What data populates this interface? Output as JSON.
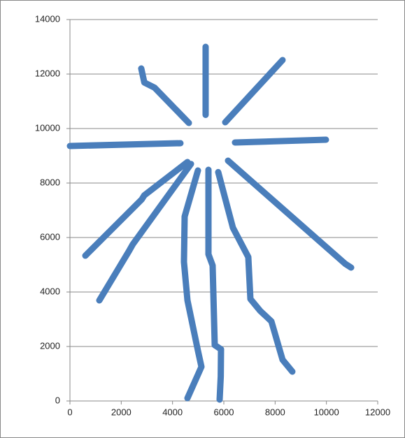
{
  "chart_data": {
    "type": "line",
    "color": "#4a7ebb",
    "grid": true,
    "xlim": [
      0,
      12000
    ],
    "xticks": [
      0,
      2000,
      4000,
      6000,
      8000,
      10000,
      12000
    ],
    "ylim": [
      0,
      14000
    ],
    "yticks": [
      0,
      2000,
      4000,
      6000,
      8000,
      10000,
      12000,
      14000
    ],
    "series": [
      {
        "x": [
          5290,
          5290
        ],
        "values": [
          13000,
          10500
        ]
      },
      {
        "x": [
          2780,
          2900,
          3300,
          4636
        ],
        "values": [
          12205,
          11690,
          11500,
          10205
        ]
      },
      {
        "x": [
          6054,
          8290
        ],
        "values": [
          10230,
          12513
        ]
      },
      {
        "x": [
          0,
          4309
        ],
        "values": [
          9359,
          9462
        ]
      },
      {
        "x": [
          6436,
          9981
        ],
        "values": [
          9487,
          9590
        ]
      },
      {
        "x": [
          4582,
          2900,
          2800,
          600
        ],
        "values": [
          8770,
          7550,
          7400,
          5333
        ]
      },
      {
        "x": [
          4718,
          2450,
          2300,
          1145
        ],
        "values": [
          8700,
          5750,
          5500,
          3692
        ]
      },
      {
        "x": [
          4990,
          4472,
          4445,
          4582,
          4990,
          5127,
          4582
        ],
        "values": [
          8461,
          6769,
          5103,
          3692,
          1846,
          1256,
          103
        ]
      },
      {
        "x": [
          5400,
          5400,
          5563,
          5645,
          5890,
          5880,
          5836
        ],
        "values": [
          8487,
          5385,
          4974,
          2051,
          1897,
          900,
          51
        ]
      },
      {
        "x": [
          5781,
          6354,
          6954,
          7036,
          7418,
          7854,
          8290,
          8672
        ],
        "values": [
          8400,
          6359,
          5282,
          3744,
          3308,
          2923,
          1513,
          1077
        ]
      },
      {
        "x": [
          6163,
          10745,
          10963
        ],
        "values": [
          8820,
          5026,
          4897
        ]
      }
    ]
  }
}
